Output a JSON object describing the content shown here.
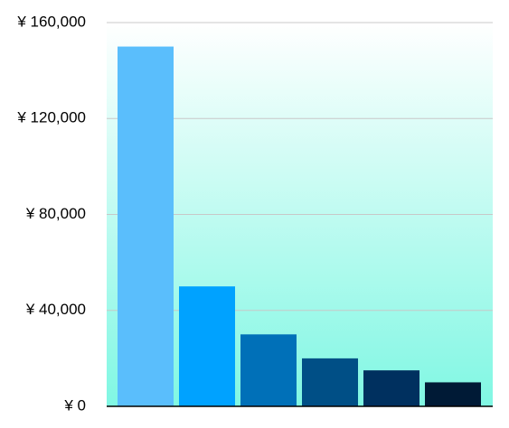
{
  "chart_data": {
    "type": "bar",
    "categories": [
      null,
      null,
      null,
      null,
      null,
      null
    ],
    "values": [
      150000,
      50000,
      30000,
      20000,
      15000,
      10000
    ],
    "colors": [
      "#5abefc",
      "#00a2ff",
      "#0070b8",
      "#004f86",
      "#00305f",
      "#001a36"
    ],
    "ylim": [
      0,
      160000
    ],
    "yticks": [
      {
        "value": 0,
        "label": "¥ 0"
      },
      {
        "value": 40000,
        "label": "¥ 40,000"
      },
      {
        "value": 80000,
        "label": "¥ 80,000"
      },
      {
        "value": 120000,
        "label": "¥ 120,000"
      },
      {
        "value": 160000,
        "label": "¥ 160,000"
      }
    ],
    "grid": true
  }
}
